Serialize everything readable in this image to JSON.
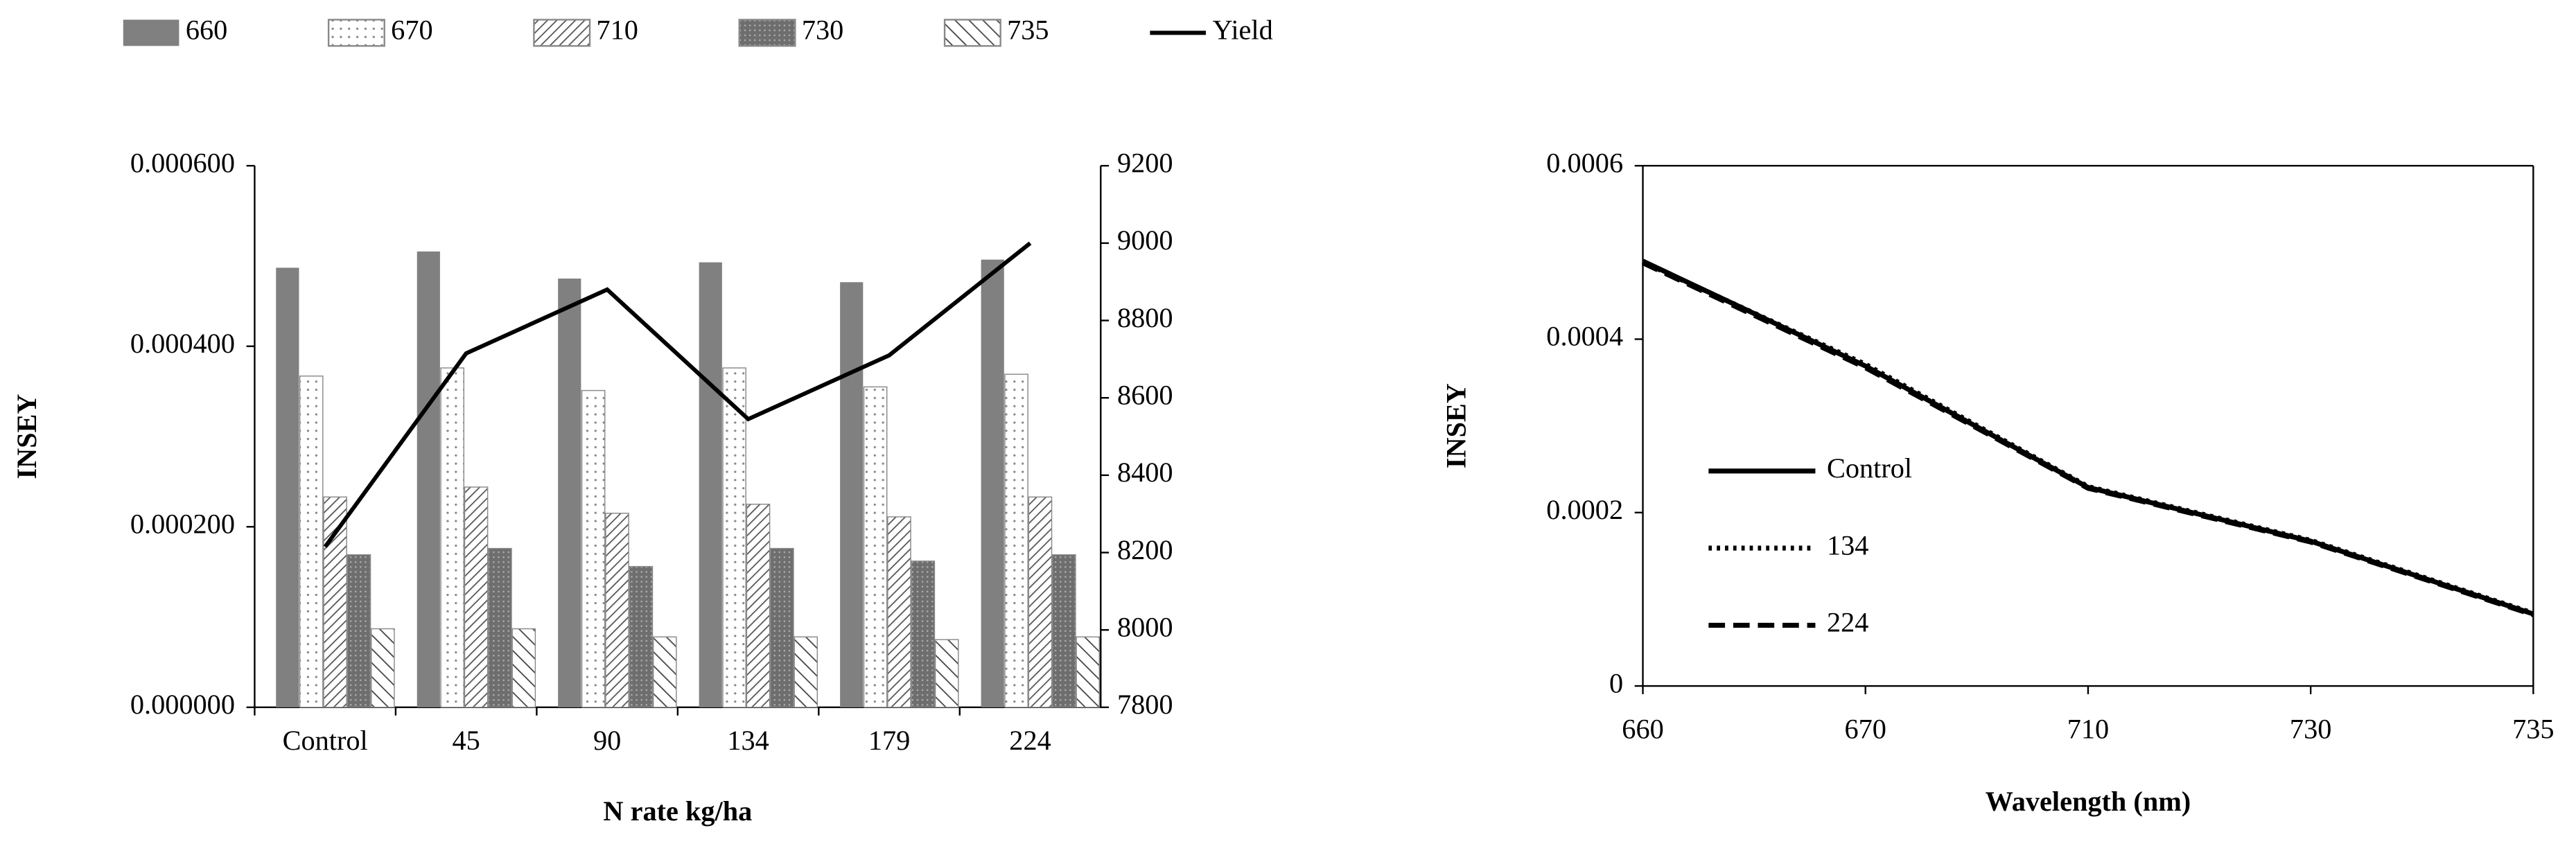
{
  "chart_data": [
    {
      "type": "bar",
      "xlabel": "N rate kg/ha",
      "ylabel": "INSEY",
      "categories": [
        "Control",
        "45",
        "90",
        "134",
        "179",
        "224"
      ],
      "series": [
        {
          "name": "660",
          "color": "#808080",
          "values": [
            0.000487,
            0.000505,
            0.000475,
            0.000493,
            0.000471,
            0.000496
          ]
        },
        {
          "name": "670",
          "color": "#ffffff",
          "values": [
            0.000367,
            0.000376,
            0.000351,
            0.000376,
            0.000355,
            0.000369
          ]
        },
        {
          "name": "710",
          "color": "#ffffff",
          "values": [
            0.000233,
            0.000244,
            0.000215,
            0.000225,
            0.000211,
            0.000233
          ]
        },
        {
          "name": "730",
          "color": "#6e6e6e",
          "values": [
            0.000169,
            0.000176,
            0.000156,
            0.000176,
            0.000162,
            0.000169
          ]
        },
        {
          "name": "735",
          "color": "#ffffff",
          "values": [
            8.7e-05,
            8.7e-05,
            7.8e-05,
            7.8e-05,
            7.5e-05,
            7.8e-05
          ]
        },
        {
          "name": "Yield",
          "color": "#000000",
          "type": "line",
          "axis": "y2",
          "values": [
            8215,
            8715,
            8880,
            8545,
            8710,
            9000
          ]
        }
      ],
      "ylim": [
        0,
        0.0006
      ],
      "yticks": [
        {
          "value": 0,
          "label": "0.000000"
        },
        {
          "value": 0.0002,
          "label": "0.000200"
        },
        {
          "value": 0.0004,
          "label": "0.000400"
        },
        {
          "value": 0.0006,
          "label": "0.000600"
        }
      ],
      "y2lim": [
        7800,
        9200
      ],
      "y2ticks": [
        7800,
        8000,
        8200,
        8400,
        8600,
        8800,
        9000,
        9200
      ],
      "legend": "top"
    },
    {
      "type": "line",
      "xlabel": "Wavelength (nm)",
      "ylabel": "INSEY",
      "categories": [
        "660",
        "670",
        "710",
        "730",
        "735"
      ],
      "series": [
        {
          "name": "Control",
          "color": "#000000",
          "dash": "solid",
          "values": [
            0.00049,
            0.000369,
            0.000229,
            0.000167,
            8.3e-05
          ]
        },
        {
          "name": "134",
          "color": "#000000",
          "dash": "dotted",
          "values": [
            0.000489,
            0.000371,
            0.00023,
            0.000168,
            8.4e-05
          ]
        },
        {
          "name": "224",
          "color": "#000000",
          "dash": "dashed",
          "values": [
            0.000488,
            0.000367,
            0.000228,
            0.000166,
            8.2e-05
          ]
        }
      ],
      "ylim": [
        0,
        0.0006
      ],
      "yticks": [
        0,
        0.0002,
        0.0004,
        0.0006
      ],
      "legend": "left"
    }
  ]
}
